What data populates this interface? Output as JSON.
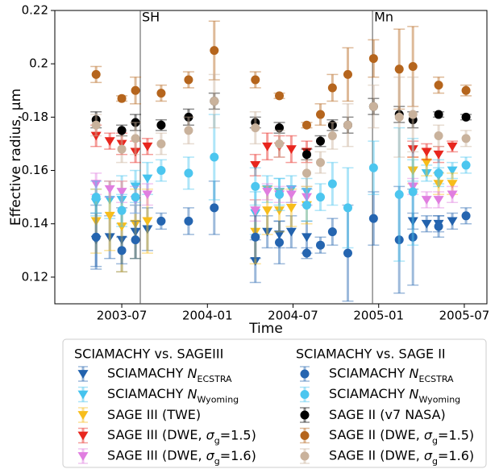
{
  "chart_data": {
    "type": "errorbar-scatter",
    "xlabel": "Time",
    "ylabel": "Effective radius, µm",
    "xlim": [
      2003.109,
      2005.632
    ],
    "ylim": [
      0.11,
      0.22
    ],
    "xticks": [
      {
        "value": 2003.5,
        "label": "2003-07"
      },
      {
        "value": 2004.0,
        "label": "2004-01"
      },
      {
        "value": 2004.5,
        "label": "2004-07"
      },
      {
        "value": 2005.0,
        "label": "2005-01"
      },
      {
        "value": 2005.5,
        "label": "2005-07"
      }
    ],
    "yticks": [
      0.12,
      0.14,
      0.16,
      0.18,
      0.2,
      0.22
    ],
    "vlines": [
      {
        "x": 2003.608,
        "label": "SH"
      },
      {
        "x": 2004.964,
        "label": "Mn"
      }
    ],
    "legend": "below",
    "groups": [
      {
        "title": "SCIAMACHY vs. SAGEIII",
        "series": [
          {
            "name": "SCIAMACHY N_ECSTRA",
            "marker": "triangle-down",
            "color": "#2262ad",
            "x": [
              2003.35,
              2003.43,
              2003.5,
              2003.58,
              2003.65,
              2004.28,
              2004.35,
              2004.42,
              2004.49,
              2004.58,
              2005.2,
              2005.28,
              2005.35,
              2005.43
            ],
            "values": [
              0.134,
              0.135,
              0.134,
              0.137,
              0.138,
              0.126,
              0.137,
              0.136,
              0.137,
              0.135,
              0.141,
              0.14,
              0.14,
              0.141
            ],
            "errors": [
              0.01,
              0.008,
              0.012,
              0.01,
              0.008,
              0.008,
              0.006,
              0.005,
              0.006,
              0.006,
              0.003,
              0.003,
              0.003,
              0.003
            ]
          },
          {
            "name": "SCIAMACHY N_Wyoming",
            "marker": "triangle-down",
            "color": "#45c3ee",
            "x": [
              2003.35,
              2003.43,
              2003.5,
              2003.58,
              2003.65,
              2004.28,
              2004.35,
              2004.42,
              2004.49,
              2004.58,
              2005.2,
              2005.28,
              2005.35,
              2005.43
            ],
            "values": [
              0.148,
              0.149,
              0.149,
              0.154,
              0.157,
              0.144,
              0.153,
              0.152,
              0.153,
              0.152,
              0.16,
              0.159,
              0.158,
              0.16
            ],
            "errors": [
              0.005,
              0.007,
              0.009,
              0.006,
              0.006,
              0.008,
              0.005,
              0.005,
              0.005,
              0.005,
              0.004,
              0.003,
              0.003,
              0.003
            ]
          },
          {
            "name": "SAGE III (TWE)",
            "marker": "triangle-down",
            "color": "#f7bd1c",
            "x": [
              2003.35,
              2003.43,
              2003.5,
              2003.58,
              2003.65,
              2004.28,
              2004.35,
              2004.42,
              2004.49,
              2004.58,
              2005.2,
              2005.28,
              2005.35,
              2005.43
            ],
            "values": [
              0.141,
              0.143,
              0.139,
              0.14,
              0.141,
              0.137,
              0.145,
              0.145,
              0.146,
              0.147,
              0.16,
              0.163,
              0.155,
              0.155
            ],
            "errors": [
              0.012,
              0.013,
              0.017,
              0.013,
              0.012,
              0.012,
              0.009,
              0.008,
              0.007,
              0.007,
              0.005,
              0.005,
              0.004,
              0.004
            ]
          },
          {
            "name": "SAGE III (DWE, σ_g=1.5)",
            "marker": "triangle-down",
            "color": "#e8261e",
            "x": [
              2003.35,
              2003.43,
              2003.5,
              2003.58,
              2003.65,
              2004.28,
              2004.35,
              2004.42,
              2004.49,
              2004.58,
              2005.2,
              2005.28,
              2005.35,
              2005.43
            ],
            "values": [
              0.173,
              0.171,
              0.17,
              0.167,
              0.169,
              0.162,
              0.169,
              0.169,
              0.168,
              0.167,
              0.168,
              0.167,
              0.166,
              0.169
            ],
            "errors": [
              0.004,
              0.003,
              0.004,
              0.004,
              0.003,
              0.004,
              0.005,
              0.004,
              0.005,
              0.004,
              0.003,
              0.003,
              0.003,
              0.002
            ]
          },
          {
            "name": "SAGE III (DWE, σ_g=1.6)",
            "marker": "triangle-down",
            "color": "#e07ee0",
            "x": [
              2003.35,
              2003.43,
              2003.5,
              2003.58,
              2003.65,
              2004.28,
              2004.35,
              2004.42,
              2004.49,
              2004.58,
              2005.2,
              2005.28,
              2005.35,
              2005.43
            ],
            "values": [
              0.155,
              0.153,
              0.152,
              0.149,
              0.151,
              0.145,
              0.152,
              0.151,
              0.151,
              0.15,
              0.154,
              0.149,
              0.149,
              0.151
            ],
            "errors": [
              0.004,
              0.003,
              0.004,
              0.005,
              0.004,
              0.004,
              0.003,
              0.003,
              0.003,
              0.003,
              0.003,
              0.003,
              0.003,
              0.003
            ]
          }
        ]
      },
      {
        "title": "SCIAMACHY vs. SAGE II",
        "series": [
          {
            "name": "SCIAMACHY N_ECSTRA",
            "marker": "circle",
            "color": "#2565b0",
            "x": [
              2003.35,
              2003.5,
              2003.58,
              2003.73,
              2003.89,
              2004.04,
              2004.28,
              2004.42,
              2004.58,
              2004.66,
              2004.73,
              2004.82,
              2004.97,
              2005.12,
              2005.2,
              2005.35,
              2005.51
            ],
            "values": [
              0.135,
              0.13,
              0.134,
              0.141,
              0.141,
              0.146,
              0.135,
              0.133,
              0.129,
              0.132,
              0.137,
              0.129,
              0.142,
              0.134,
              0.135,
              0.139,
              0.143
            ],
            "errors": [
              0.012,
              0.005,
              0.007,
              0.003,
              0.005,
              0.01,
              0.008,
              0.008,
              0.002,
              0.003,
              0.005,
              0.018,
              0.01,
              0.02,
              0.018,
              0.004,
              0.003
            ]
          },
          {
            "name": "SCIAMACHY N_Wyoming",
            "marker": "circle",
            "color": "#4cc6ef",
            "x": [
              2003.35,
              2003.5,
              2003.58,
              2003.73,
              2003.89,
              2004.04,
              2004.28,
              2004.42,
              2004.58,
              2004.66,
              2004.73,
              2004.82,
              2004.97,
              2005.12,
              2005.2,
              2005.35,
              2005.51
            ],
            "values": [
              0.15,
              0.145,
              0.15,
              0.16,
              0.159,
              0.165,
              0.154,
              0.151,
              0.147,
              0.15,
              0.155,
              0.146,
              0.161,
              0.151,
              0.152,
              0.159,
              0.162
            ],
            "errors": [
              0.006,
              0.006,
              0.006,
              0.004,
              0.006,
              0.016,
              0.007,
              0.006,
              0.006,
              0.005,
              0.008,
              0.015,
              0.01,
              0.025,
              0.02,
              0.005,
              0.003
            ]
          },
          {
            "name": "SAGE II (v7 NASA)",
            "marker": "circle",
            "color": "#000000",
            "x": [
              2003.35,
              2003.5,
              2003.58,
              2003.73,
              2003.89,
              2004.04,
              2004.28,
              2004.42,
              2004.58,
              2004.66,
              2004.73,
              2004.82,
              2004.97,
              2005.12,
              2005.2,
              2005.35,
              2005.51
            ],
            "values": [
              0.179,
              0.175,
              0.178,
              0.177,
              0.18,
              0.186,
              0.178,
              0.176,
              0.166,
              0.171,
              0.177,
              0.177,
              0.184,
              0.181,
              0.179,
              0.181,
              0.18
            ],
            "errors": [
              0.003,
              0.002,
              0.003,
              0.002,
              0.003,
              0.003,
              0.002,
              0.002,
              0.002,
              0.002,
              0.002,
              0.003,
              0.003,
              0.003,
              0.003,
              0.001,
              0.001
            ]
          },
          {
            "name": "SAGE II (DWE, σ_g=1.5)",
            "marker": "circle",
            "color": "#b5651d",
            "x": [
              2003.35,
              2003.5,
              2003.58,
              2003.73,
              2003.89,
              2004.04,
              2004.28,
              2004.42,
              2004.58,
              2004.66,
              2004.73,
              2004.82,
              2004.97,
              2005.12,
              2005.2,
              2005.35,
              2005.51
            ],
            "values": [
              0.196,
              0.187,
              0.19,
              0.189,
              0.194,
              0.205,
              0.194,
              0.188,
              0.177,
              0.181,
              0.191,
              0.196,
              0.202,
              0.198,
              0.199,
              0.192,
              0.19
            ],
            "errors": [
              0.003,
              0.001,
              0.005,
              0.003,
              0.003,
              0.011,
              0.003,
              0.001,
              0.001,
              0.004,
              0.005,
              0.01,
              0.007,
              0.015,
              0.015,
              0.003,
              0.002
            ]
          },
          {
            "name": "SAGE II (DWE, σ_g=1.6)",
            "marker": "circle",
            "color": "#c9b29c",
            "x": [
              2003.35,
              2003.5,
              2003.58,
              2003.73,
              2003.89,
              2004.04,
              2004.28,
              2004.42,
              2004.58,
              2004.66,
              2004.73,
              2004.82,
              2004.97,
              2005.12,
              2005.2,
              2005.35,
              2005.51
            ],
            "values": [
              0.177,
              0.168,
              0.172,
              0.17,
              0.175,
              0.186,
              0.176,
              0.17,
              0.159,
              0.163,
              0.173,
              0.177,
              0.184,
              0.18,
              0.181,
              0.173,
              0.172
            ],
            "errors": [
              0.004,
              0.005,
              0.006,
              0.004,
              0.005,
              0.01,
              0.006,
              0.005,
              0.005,
              0.004,
              0.005,
              0.008,
              0.008,
              0.015,
              0.014,
              0.004,
              0.003
            ]
          }
        ]
      }
    ]
  }
}
